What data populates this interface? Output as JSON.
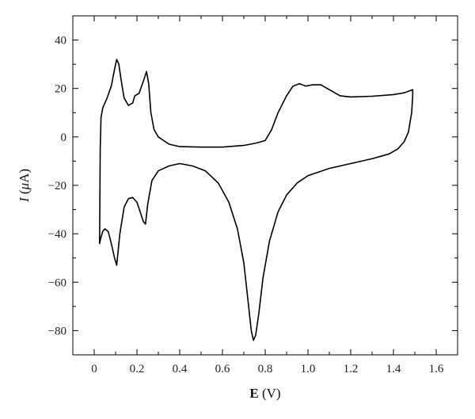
{
  "chart_data": {
    "type": "line",
    "title": "",
    "xlabel": {
      "symbol": "E",
      "unit": "(V)"
    },
    "ylabel": {
      "symbol": "I",
      "unit_open": "(",
      "unit_mu": "μ",
      "unit_close": "A)"
    },
    "xlim": [
      -0.1,
      1.7
    ],
    "ylim": [
      -90,
      50
    ],
    "xticks": [
      0,
      0.2,
      0.4,
      0.6,
      0.8,
      1.0,
      1.2,
      1.4,
      1.6
    ],
    "xtick_labels": [
      "0",
      "0.2",
      "0.4",
      "0.6",
      "0.8",
      "1.0",
      "1.2",
      "1.4",
      "1.6"
    ],
    "yticks": [
      -80,
      -60,
      -40,
      -20,
      0,
      20,
      40
    ],
    "ytick_labels": [
      "−80",
      "−60",
      "−40",
      "−20",
      "0",
      "20",
      "40"
    ],
    "grid": false,
    "legend": "none",
    "series": [
      {
        "line_color": "#000000",
        "points": [
          [
            0.025,
            -44
          ],
          [
            0.028,
            -5
          ],
          [
            0.032,
            8
          ],
          [
            0.04,
            12
          ],
          [
            0.06,
            16
          ],
          [
            0.08,
            21
          ],
          [
            0.095,
            28
          ],
          [
            0.105,
            32
          ],
          [
            0.115,
            30
          ],
          [
            0.125,
            24
          ],
          [
            0.14,
            16
          ],
          [
            0.16,
            13
          ],
          [
            0.18,
            14
          ],
          [
            0.19,
            17
          ],
          [
            0.21,
            18
          ],
          [
            0.23,
            23
          ],
          [
            0.245,
            27
          ],
          [
            0.255,
            22
          ],
          [
            0.265,
            10
          ],
          [
            0.28,
            3
          ],
          [
            0.3,
            0
          ],
          [
            0.35,
            -3
          ],
          [
            0.4,
            -4
          ],
          [
            0.5,
            -4.2
          ],
          [
            0.6,
            -4.2
          ],
          [
            0.7,
            -3.5
          ],
          [
            0.76,
            -2.5
          ],
          [
            0.8,
            -1.5
          ],
          [
            0.83,
            3
          ],
          [
            0.86,
            10
          ],
          [
            0.9,
            17
          ],
          [
            0.93,
            21
          ],
          [
            0.96,
            22
          ],
          [
            0.99,
            21
          ],
          [
            1.02,
            21.5
          ],
          [
            1.06,
            21.5
          ],
          [
            1.1,
            19.5
          ],
          [
            1.15,
            17
          ],
          [
            1.2,
            16.5
          ],
          [
            1.3,
            16.8
          ],
          [
            1.4,
            17.5
          ],
          [
            1.45,
            18.2
          ],
          [
            1.49,
            19.5
          ],
          [
            1.49,
            17
          ],
          [
            1.485,
            10
          ],
          [
            1.47,
            2
          ],
          [
            1.45,
            -2
          ],
          [
            1.42,
            -5
          ],
          [
            1.38,
            -7
          ],
          [
            1.3,
            -9
          ],
          [
            1.2,
            -11
          ],
          [
            1.1,
            -13
          ],
          [
            1.0,
            -16
          ],
          [
            0.95,
            -19
          ],
          [
            0.9,
            -24
          ],
          [
            0.86,
            -31
          ],
          [
            0.82,
            -43
          ],
          [
            0.79,
            -58
          ],
          [
            0.77,
            -73
          ],
          [
            0.755,
            -82
          ],
          [
            0.745,
            -84
          ],
          [
            0.735,
            -80
          ],
          [
            0.72,
            -68
          ],
          [
            0.7,
            -52
          ],
          [
            0.67,
            -38
          ],
          [
            0.63,
            -27
          ],
          [
            0.58,
            -19
          ],
          [
            0.52,
            -14
          ],
          [
            0.46,
            -12
          ],
          [
            0.4,
            -11
          ],
          [
            0.35,
            -12
          ],
          [
            0.3,
            -14
          ],
          [
            0.27,
            -18
          ],
          [
            0.25,
            -28
          ],
          [
            0.24,
            -36
          ],
          [
            0.23,
            -35
          ],
          [
            0.215,
            -31
          ],
          [
            0.2,
            -27
          ],
          [
            0.18,
            -25
          ],
          [
            0.16,
            -25.5
          ],
          [
            0.14,
            -29
          ],
          [
            0.12,
            -40
          ],
          [
            0.105,
            -53
          ],
          [
            0.095,
            -50
          ],
          [
            0.08,
            -44
          ],
          [
            0.065,
            -39
          ],
          [
            0.05,
            -38
          ],
          [
            0.04,
            -39
          ],
          [
            0.03,
            -42
          ],
          [
            0.025,
            -44
          ]
        ]
      }
    ]
  }
}
